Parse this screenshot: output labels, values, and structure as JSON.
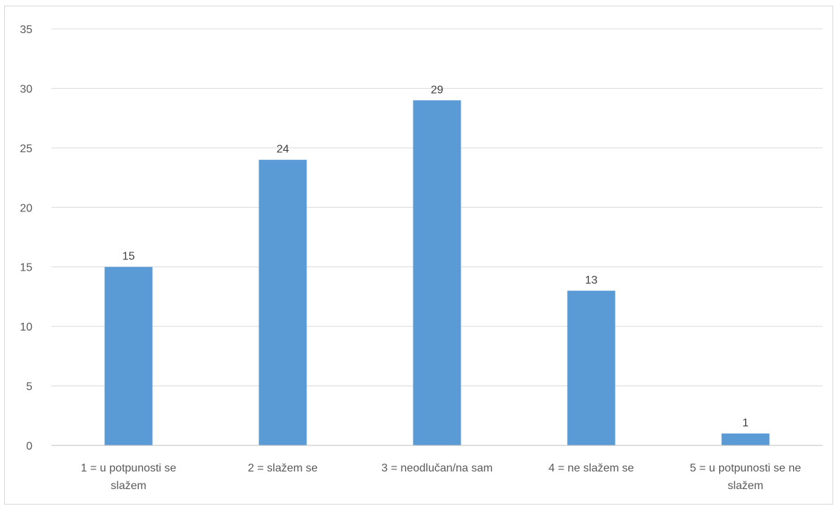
{
  "chart_data": {
    "type": "bar",
    "categories": [
      [
        "1 = u potpunosti se",
        "slažem"
      ],
      [
        "2 = slažem se"
      ],
      [
        "3 = neodlučan/na sam"
      ],
      [
        "4 = ne slažem se"
      ],
      [
        "5 = u potpunosti se ne",
        "slažem"
      ]
    ],
    "values": [
      15,
      24,
      29,
      13,
      1
    ],
    "data_labels": [
      "15",
      "24",
      "29",
      "13",
      "1"
    ],
    "title": "",
    "xlabel": "",
    "ylabel": "",
    "ylim": [
      0,
      35
    ],
    "yticks": [
      "0",
      "5",
      "10",
      "15",
      "20",
      "25",
      "30",
      "35"
    ],
    "grid": true,
    "legend": "none",
    "bar_color": "#5b9bd5"
  }
}
